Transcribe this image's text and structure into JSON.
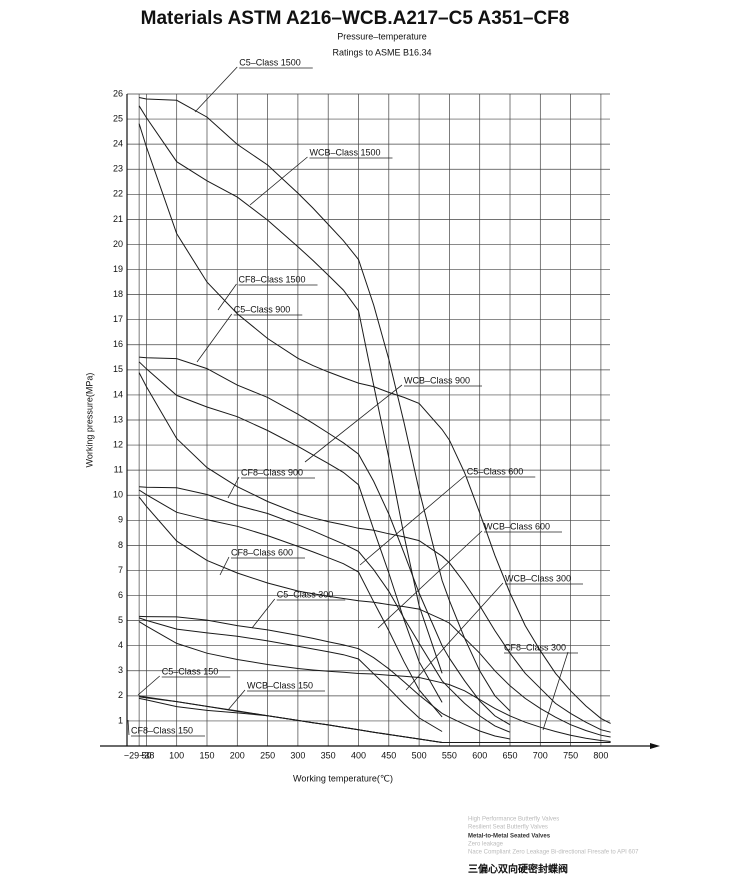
{
  "chart_data": {
    "type": "line",
    "title": "Materials ASTM A216–WCB.A217–C5 A351–CF8",
    "subtitle": [
      "Pressure–temperature",
      "Ratings to  ASME  B16.34"
    ],
    "xlabel": "Working temperature(℃)",
    "ylabel": "Working pressure(MPa)",
    "x": [
      38,
      50,
      100,
      150,
      200,
      250,
      300,
      325,
      350,
      375,
      400,
      425,
      450,
      475,
      500,
      538,
      550,
      575,
      600,
      625,
      650,
      675,
      700,
      725,
      750,
      775,
      800,
      816
    ],
    "xlim": [
      18,
      815
    ],
    "xticks": [
      {
        "value": 38,
        "label": "−29~38"
      },
      50,
      100,
      150,
      200,
      250,
      300,
      350,
      400,
      450,
      500,
      550,
      600,
      650,
      700,
      750,
      800
    ],
    "ylim": [
      0,
      26
    ],
    "yticks": [
      1,
      2,
      3,
      4,
      5,
      6,
      7,
      8,
      9,
      10,
      11,
      12,
      13,
      14,
      15,
      16,
      17,
      18,
      19,
      20,
      21,
      22,
      23,
      24,
      25,
      26
    ],
    "grid": true,
    "series": [
      {
        "name": "C5–Class 1500",
        "color": "#1a1a1a",
        "values": [
          25.86,
          25.8,
          25.75,
          25.08,
          23.99,
          23.17,
          22.05,
          21.45,
          20.8,
          20.15,
          19.4,
          17.58,
          15.42,
          12.9,
          10.2,
          6.6,
          5.8,
          4.3,
          3.0,
          2.0,
          1.4,
          null,
          null,
          null,
          null,
          null,
          null,
          null
        ]
      },
      {
        "name": "WCB–Class 1500",
        "color": "#1a1a1a",
        "values": [
          25.53,
          25.06,
          23.3,
          22.54,
          21.89,
          20.97,
          19.91,
          19.36,
          18.78,
          18.18,
          17.36,
          14.38,
          11.5,
          8.4,
          5.6,
          2.9,
          null,
          null,
          null,
          null,
          null,
          null,
          null,
          null,
          null,
          null,
          null,
          null
        ]
      },
      {
        "name": "CF8–Class 1500",
        "color": "#1a1a1a",
        "values": [
          24.82,
          23.89,
          20.43,
          18.5,
          17.24,
          16.25,
          15.46,
          15.17,
          14.92,
          14.69,
          14.47,
          14.33,
          14.1,
          13.9,
          13.66,
          12.62,
          12.2,
          10.9,
          9.3,
          7.6,
          6.1,
          4.8,
          3.8,
          2.9,
          2.2,
          1.6,
          1.1,
          0.9
        ]
      },
      {
        "name": "C5–Class 900",
        "color": "#1a1a1a",
        "values": [
          15.51,
          15.48,
          15.45,
          15.05,
          14.39,
          13.9,
          13.23,
          12.87,
          12.48,
          12.09,
          11.64,
          10.55,
          9.25,
          7.7,
          6.1,
          4.0,
          3.5,
          2.6,
          1.8,
          1.2,
          0.85,
          null,
          null,
          null,
          null,
          null,
          null,
          null
        ]
      },
      {
        "name": "WCB–Class 900",
        "color": "#1a1a1a",
        "values": [
          15.32,
          15.04,
          13.98,
          13.52,
          13.13,
          12.58,
          11.95,
          11.61,
          11.27,
          10.91,
          10.42,
          8.63,
          6.9,
          5.04,
          3.36,
          1.74,
          null,
          null,
          null,
          null,
          null,
          null,
          null,
          null,
          null,
          null,
          null,
          null
        ]
      },
      {
        "name": "CF8–Class 900",
        "color": "#1a1a1a",
        "values": [
          14.89,
          14.33,
          12.26,
          11.1,
          10.34,
          9.75,
          9.27,
          9.1,
          8.95,
          8.82,
          8.68,
          8.6,
          8.46,
          8.34,
          8.19,
          7.57,
          7.3,
          6.5,
          5.6,
          4.6,
          3.7,
          2.9,
          2.3,
          1.7,
          1.3,
          0.95,
          0.65,
          0.55
        ]
      },
      {
        "name": "C5–Class 600",
        "color": "#1a1a1a",
        "values": [
          10.34,
          10.32,
          10.3,
          10.03,
          9.59,
          9.27,
          8.82,
          8.58,
          8.32,
          8.06,
          7.76,
          7.03,
          6.17,
          5.1,
          4.1,
          2.6,
          2.3,
          1.7,
          1.2,
          0.8,
          0.55,
          null,
          null,
          null,
          null,
          null,
          null,
          null
        ]
      },
      {
        "name": "WCB–Class 600",
        "color": "#1a1a1a",
        "values": [
          10.21,
          10.02,
          9.32,
          9.02,
          8.76,
          8.39,
          7.96,
          7.74,
          7.51,
          7.27,
          6.94,
          5.75,
          4.6,
          3.36,
          2.24,
          1.16,
          null,
          null,
          null,
          null,
          null,
          null,
          null,
          null,
          null,
          null,
          null,
          null
        ]
      },
      {
        "name": "CF8–Class 600",
        "color": "#1a1a1a",
        "values": [
          9.93,
          9.56,
          8.17,
          7.4,
          6.9,
          6.5,
          6.18,
          6.07,
          5.97,
          5.88,
          5.79,
          5.73,
          5.64,
          5.56,
          5.46,
          5.05,
          4.9,
          4.3,
          3.7,
          3.0,
          2.4,
          1.9,
          1.5,
          1.15,
          0.85,
          0.62,
          0.43,
          0.36
        ]
      },
      {
        "name": "C5–Class 300",
        "color": "#1a1a1a",
        "values": [
          5.17,
          5.16,
          5.15,
          5.02,
          4.8,
          4.63,
          4.41,
          4.29,
          4.16,
          4.03,
          3.88,
          3.52,
          3.08,
          2.56,
          2.03,
          1.3,
          1.15,
          0.86,
          0.6,
          0.4,
          0.28,
          null,
          null,
          null,
          null,
          null,
          null,
          null
        ]
      },
      {
        "name": "WCB–Class 300",
        "color": "#1a1a1a",
        "values": [
          5.11,
          5.01,
          4.66,
          4.51,
          4.38,
          4.19,
          3.98,
          3.87,
          3.76,
          3.64,
          3.47,
          2.88,
          2.3,
          1.68,
          1.12,
          0.58,
          null,
          null,
          null,
          null,
          null,
          null,
          null,
          null,
          null,
          null,
          null,
          null
        ]
      },
      {
        "name": "CF8–Class 300",
        "color": "#1a1a1a",
        "values": [
          4.96,
          4.78,
          4.09,
          3.7,
          3.45,
          3.25,
          3.09,
          3.03,
          2.98,
          2.94,
          2.89,
          2.87,
          2.82,
          2.78,
          2.73,
          2.52,
          2.45,
          2.2,
          1.85,
          1.5,
          1.2,
          0.95,
          0.75,
          0.58,
          0.43,
          0.31,
          0.22,
          0.18
        ]
      },
      {
        "name": "C5–Class 150",
        "color": "#1a1a1a",
        "values": [
          2.0,
          1.95,
          1.77,
          1.58,
          1.4,
          1.21,
          1.02,
          0.93,
          0.84,
          0.74,
          0.65,
          0.55,
          0.46,
          0.37,
          0.28,
          0.14,
          0.14,
          0.14,
          0.14,
          0.14,
          0.14,
          null,
          null,
          null,
          null,
          null,
          null,
          null
        ]
      },
      {
        "name": "WCB–Class 150",
        "color": "#1a1a1a",
        "values": [
          1.96,
          1.92,
          1.77,
          1.58,
          1.38,
          1.21,
          1.02,
          0.93,
          0.84,
          0.74,
          0.65,
          0.55,
          0.46,
          0.37,
          0.28,
          0.14,
          null,
          null,
          null,
          null,
          null,
          null,
          null,
          null,
          null,
          null,
          null,
          null
        ]
      },
      {
        "name": "CF8–Class 150",
        "color": "#1a1a1a",
        "values": [
          1.9,
          1.84,
          1.57,
          1.42,
          1.32,
          1.21,
          1.02,
          0.93,
          0.84,
          0.74,
          0.65,
          0.55,
          0.46,
          0.37,
          0.28,
          0.14,
          0.14,
          0.14,
          0.14,
          0.14,
          0.14,
          0.14,
          0.14,
          0.14,
          0.14,
          0.14,
          0.14,
          0.14
        ]
      }
    ]
  },
  "footer": {
    "lines": [
      "High Performance Butterfly Valves",
      "Resilient Seat Butterfly Valves",
      "Metal-to-Metal Seated Valves",
      "Zero leakage",
      "Nace Compliant Zero Leakage Bi-directional Firesafe to API 607"
    ],
    "caption": "三偏心双向硬密封蝶阀"
  }
}
